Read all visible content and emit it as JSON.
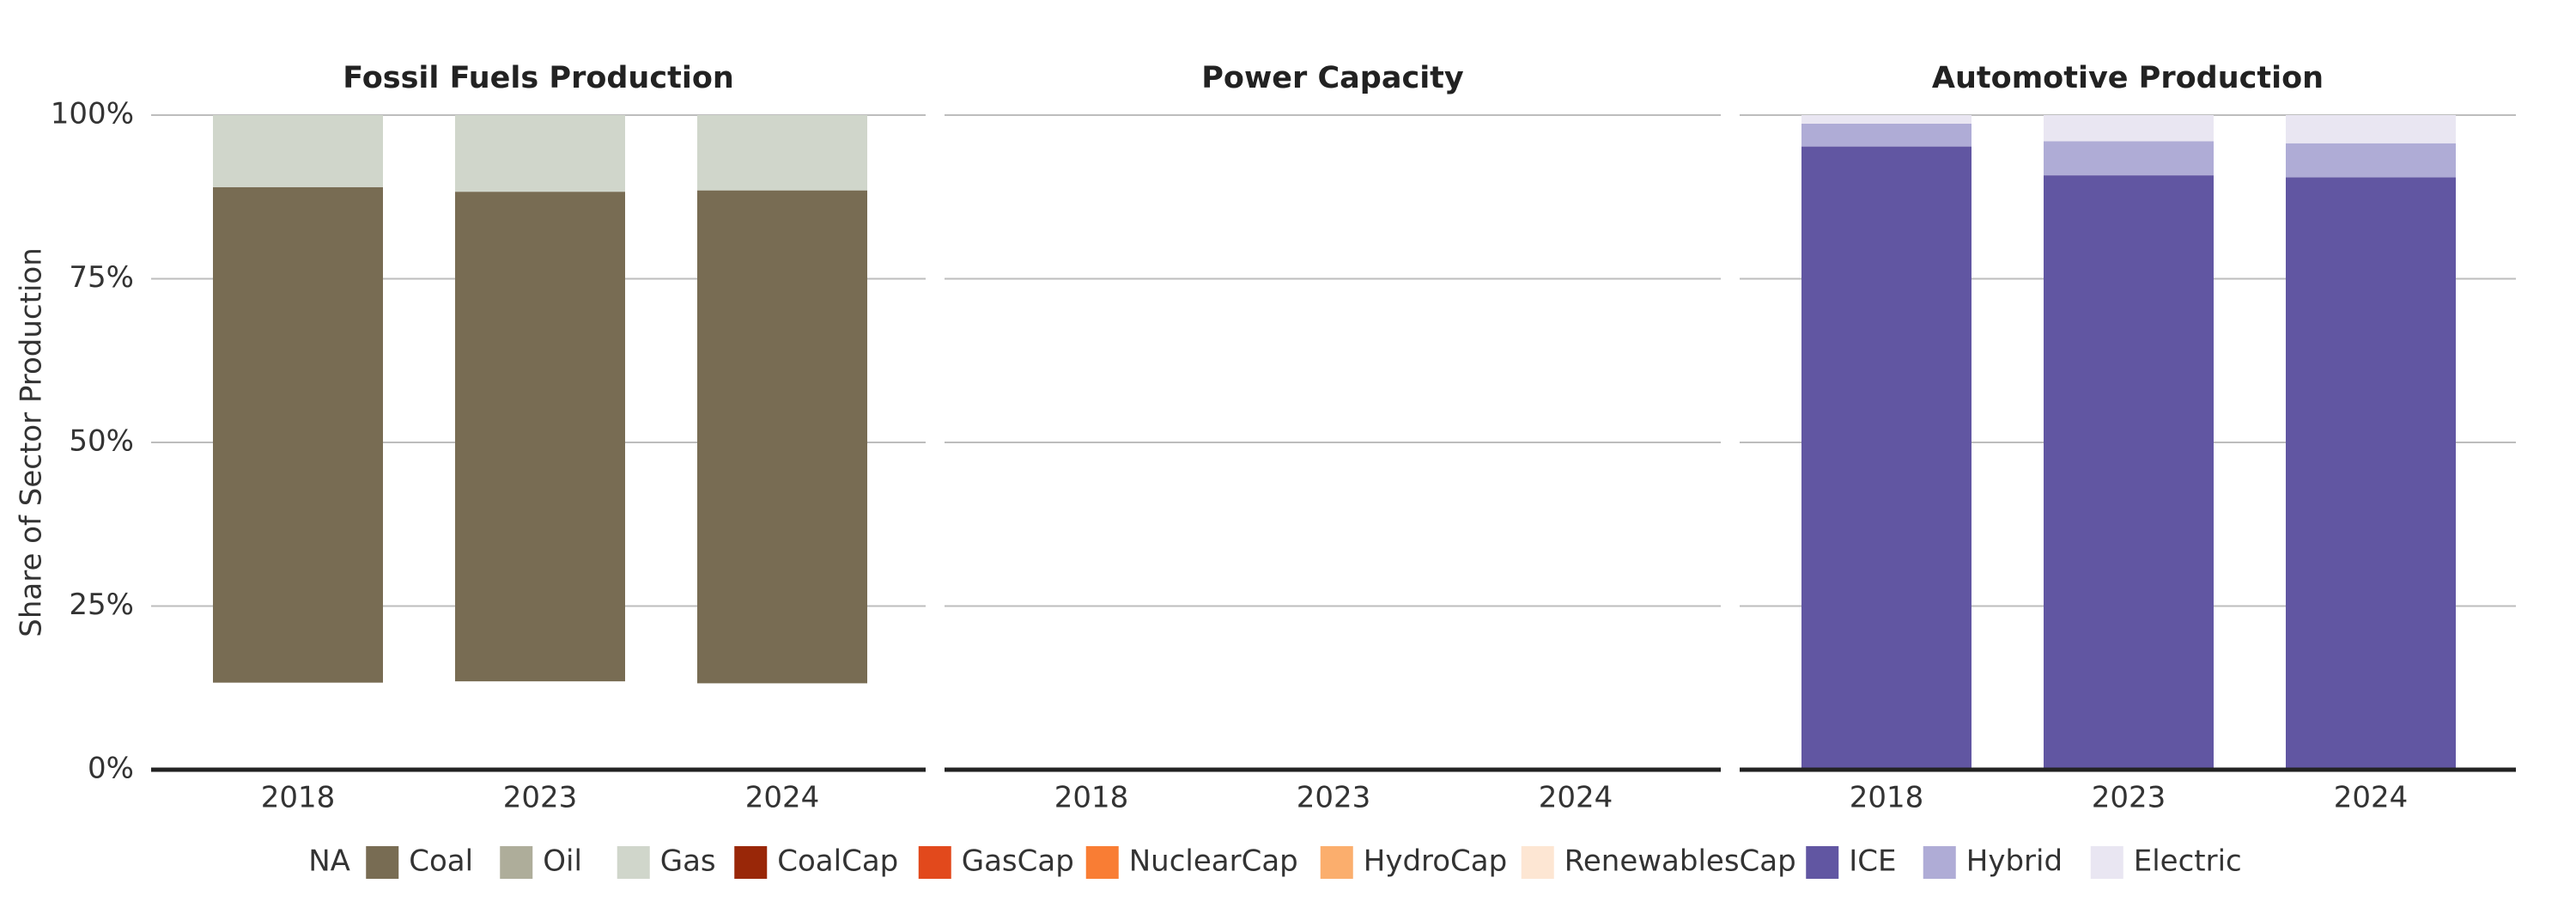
{
  "chart_data": {
    "type": "bar",
    "stacked": true,
    "ylabel": "Share of Sector Production",
    "ylim": [
      0,
      1
    ],
    "yticks": [
      {
        "value": 0,
        "label": "0%"
      },
      {
        "value": 0.25,
        "label": "25%"
      },
      {
        "value": 0.5,
        "label": "50%"
      },
      {
        "value": 0.75,
        "label": "75%"
      },
      {
        "value": 1,
        "label": "100%"
      }
    ],
    "categories": [
      "2018",
      "2023",
      "2024"
    ],
    "grid": "horizontal",
    "legend_position": "bottom",
    "legend": [
      {
        "name": "NA",
        "color": "#FFFFFF",
        "swatch": false
      },
      {
        "name": "Coal",
        "color": "#786C53",
        "swatch": true
      },
      {
        "name": "Oil",
        "color": "#AEAD9A",
        "swatch": true
      },
      {
        "name": "Gas",
        "color": "#D0D6CB",
        "swatch": true
      },
      {
        "name": "CoalCap",
        "color": "#992708",
        "swatch": true
      },
      {
        "name": "GasCap",
        "color": "#E2491C",
        "swatch": true
      },
      {
        "name": "NuclearCap",
        "color": "#F97D34",
        "swatch": true
      },
      {
        "name": "HydroCap",
        "color": "#FBAE6D",
        "swatch": true
      },
      {
        "name": "RenewablesCap",
        "color": "#FDE6D3",
        "swatch": true
      },
      {
        "name": "ICE",
        "color": "#6156A2",
        "swatch": true
      },
      {
        "name": "Hybrid",
        "color": "#AFACD6",
        "swatch": true
      },
      {
        "name": "Electric",
        "color": "#E9E6F2",
        "swatch": true
      }
    ],
    "panels": [
      {
        "title": "Fossil Fuels Production",
        "series": [
          {
            "name": "NA",
            "color": "#FFFFFF",
            "values": [
              0.133,
              0.135,
              0.132
            ]
          },
          {
            "name": "Coal",
            "color": "#786C53",
            "values": [
              0.757,
              0.748,
              0.753
            ]
          },
          {
            "name": "Gas",
            "color": "#D0D6CB",
            "values": [
              0.11,
              0.117,
              0.115
            ]
          }
        ]
      },
      {
        "title": "Power Capacity",
        "series": []
      },
      {
        "title": "Automotive Production",
        "series": [
          {
            "name": "ICE",
            "color": "#6156A2",
            "values": [
              0.952,
              0.908,
              0.905
            ]
          },
          {
            "name": "Hybrid",
            "color": "#AFACD6",
            "values": [
              0.035,
              0.052,
              0.052
            ]
          },
          {
            "name": "Electric",
            "color": "#E9E6F2",
            "values": [
              0.013,
              0.04,
              0.043
            ]
          }
        ]
      }
    ]
  }
}
